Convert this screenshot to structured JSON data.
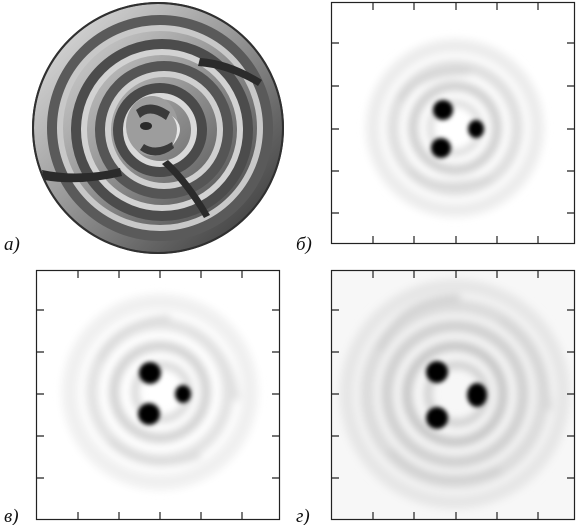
{
  "figure": {
    "panels": [
      {
        "id": "a",
        "label": "а)",
        "kind": "phase-mask"
      },
      {
        "id": "b",
        "label": "б)",
        "kind": "intensity-pattern"
      },
      {
        "id": "c",
        "label": "в)",
        "kind": "intensity-pattern"
      },
      {
        "id": "d",
        "label": "г)",
        "kind": "intensity-pattern"
      }
    ],
    "colors": {
      "frame": "#222222",
      "spot": "#050505",
      "background": "#ffffff"
    }
  }
}
